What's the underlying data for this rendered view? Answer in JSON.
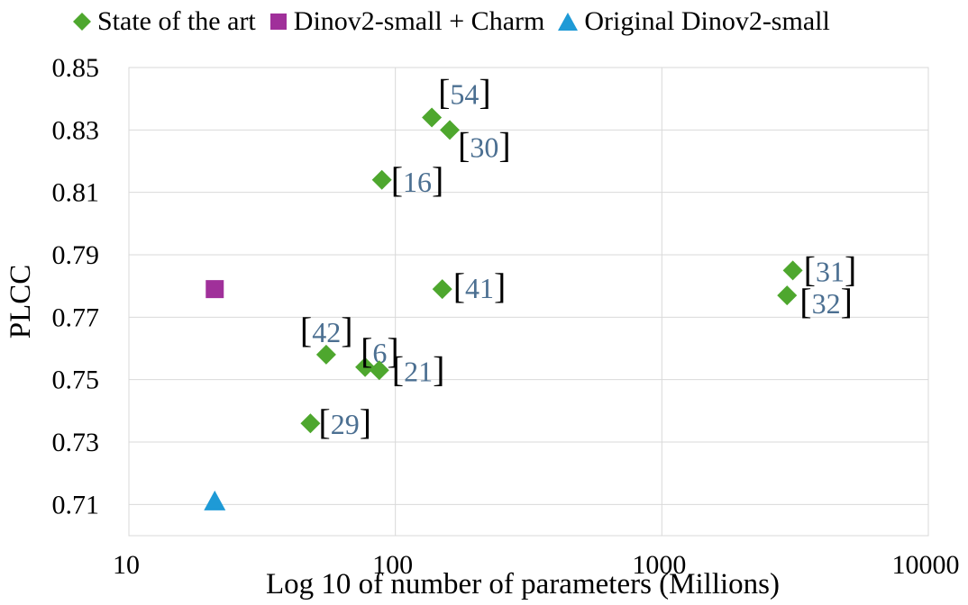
{
  "chart_data": {
    "type": "scatter",
    "title": "",
    "xlabel": "Log 10 of number of parameters (Millions)",
    "ylabel": "PLCC",
    "xscale": "log10",
    "xlim": [
      10,
      10000
    ],
    "ylim": [
      0.7,
      0.85
    ],
    "x_ticks": [
      10,
      100,
      1000,
      10000
    ],
    "x_tick_labels": [
      "10",
      "100",
      "1000",
      "10000"
    ],
    "y_ticks": [
      0.71,
      0.73,
      0.75,
      0.77,
      0.79,
      0.81,
      0.83,
      0.85
    ],
    "y_tick_labels": [
      "0.71",
      "0.73",
      "0.75",
      "0.77",
      "0.79",
      "0.81",
      "0.83",
      "0.85"
    ],
    "grid": true,
    "legend_position": "top",
    "series": [
      {
        "name": "State of the art",
        "marker": "diamond",
        "color": "#4EA72E",
        "points": [
          {
            "x": 137,
            "y": 0.834,
            "label": "54"
          },
          {
            "x": 160,
            "y": 0.83,
            "label": "30"
          },
          {
            "x": 89,
            "y": 0.814,
            "label": "16"
          },
          {
            "x": 3100,
            "y": 0.785,
            "label": "31"
          },
          {
            "x": 2950,
            "y": 0.777,
            "label": "32"
          },
          {
            "x": 150,
            "y": 0.779,
            "label": "41"
          },
          {
            "x": 55,
            "y": 0.758,
            "label": "42"
          },
          {
            "x": 77,
            "y": 0.754,
            "label": "6"
          },
          {
            "x": 87,
            "y": 0.753,
            "label": "21"
          },
          {
            "x": 48,
            "y": 0.736,
            "label": "29"
          }
        ]
      },
      {
        "name": "Dinov2-small + Charm",
        "marker": "square",
        "color": "#A0309A",
        "points": [
          {
            "x": 21,
            "y": 0.779
          }
        ]
      },
      {
        "name": "Original Dinov2-small",
        "marker": "triangle",
        "color": "#1E9AD6",
        "points": [
          {
            "x": 21,
            "y": 0.711
          }
        ]
      }
    ]
  },
  "style": {
    "label_bracket_color": "#000000",
    "label_text_color": "#4B6F91",
    "grid_color": "#D9D9D9"
  }
}
